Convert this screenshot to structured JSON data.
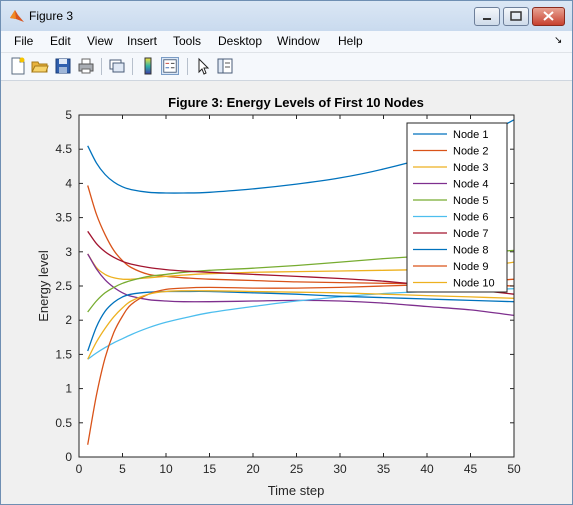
{
  "window": {
    "title": "Figure 3"
  },
  "menu": [
    "File",
    "Edit",
    "View",
    "Insert",
    "Tools",
    "Desktop",
    "Window",
    "Help"
  ],
  "icons": [
    "new-figure-icon",
    "open-file-icon",
    "save-icon",
    "print-icon",
    "link-plot-icon",
    "colorbar-icon",
    "legend-icon",
    "pointer-icon",
    "plot-browser-icon"
  ],
  "chart_data": {
    "type": "line",
    "title": "Figure 3: Energy Levels of First 10 Nodes",
    "xlabel": "Time step",
    "ylabel": "Energy level",
    "xlim": [
      0,
      50
    ],
    "ylim": [
      0,
      5
    ],
    "xticks": [
      "0",
      "5",
      "10",
      "15",
      "20",
      "25",
      "30",
      "35",
      "40",
      "45",
      "50"
    ],
    "yticks": [
      "0",
      "0.5",
      "1",
      "1.5",
      "2",
      "2.5",
      "3",
      "3.5",
      "4",
      "4.5",
      "5"
    ],
    "grid": false,
    "legend_position": "top-right",
    "x": [
      1,
      2,
      3,
      4,
      5,
      6,
      8,
      10,
      12,
      15,
      20,
      25,
      30,
      35,
      40,
      45,
      50
    ],
    "series": [
      {
        "name": "Node 1",
        "color": "#0072BD",
        "values": [
          4.55,
          4.3,
          4.13,
          4.02,
          3.95,
          3.91,
          3.87,
          3.86,
          3.86,
          3.87,
          3.92,
          3.99,
          4.08,
          4.21,
          4.38,
          4.6,
          4.93
        ]
      },
      {
        "name": "Node 2",
        "color": "#D95319",
        "values": [
          3.97,
          3.55,
          3.25,
          3.02,
          2.87,
          2.77,
          2.67,
          2.64,
          2.62,
          2.6,
          2.58,
          2.56,
          2.55,
          2.54,
          2.53,
          2.52,
          2.5
        ]
      },
      {
        "name": "Node 3",
        "color": "#EDB120",
        "values": [
          2.97,
          2.77,
          2.67,
          2.62,
          2.6,
          2.6,
          2.62,
          2.64,
          2.66,
          2.68,
          2.7,
          2.71,
          2.72,
          2.73,
          2.74,
          2.76,
          2.85
        ]
      },
      {
        "name": "Node 4",
        "color": "#7E2F8E",
        "values": [
          2.97,
          2.75,
          2.59,
          2.48,
          2.4,
          2.35,
          2.3,
          2.28,
          2.27,
          2.27,
          2.28,
          2.29,
          2.28,
          2.25,
          2.2,
          2.15,
          2.07
        ]
      },
      {
        "name": "Node 5",
        "color": "#77AC30",
        "values": [
          2.12,
          2.28,
          2.4,
          2.48,
          2.54,
          2.58,
          2.64,
          2.67,
          2.7,
          2.73,
          2.76,
          2.8,
          2.85,
          2.9,
          2.94,
          2.98,
          3.02
        ]
      },
      {
        "name": "Node 6",
        "color": "#4DBEEE",
        "values": [
          1.43,
          1.52,
          1.6,
          1.67,
          1.73,
          1.79,
          1.89,
          1.97,
          2.03,
          2.11,
          2.2,
          2.28,
          2.34,
          2.39,
          2.42,
          2.44,
          2.46
        ]
      },
      {
        "name": "Node 7",
        "color": "#A2142F",
        "values": [
          3.3,
          3.12,
          3.0,
          2.92,
          2.86,
          2.82,
          2.77,
          2.74,
          2.72,
          2.7,
          2.67,
          2.64,
          2.61,
          2.57,
          2.51,
          2.45,
          2.38
        ]
      },
      {
        "name": "Node 8",
        "color": "#0072BD",
        "values": [
          1.55,
          1.9,
          2.13,
          2.26,
          2.34,
          2.38,
          2.41,
          2.42,
          2.42,
          2.42,
          2.4,
          2.38,
          2.35,
          2.33,
          2.31,
          2.29,
          2.27
        ]
      },
      {
        "name": "Node 9",
        "color": "#D95319",
        "values": [
          0.18,
          0.9,
          1.45,
          1.82,
          2.06,
          2.23,
          2.38,
          2.45,
          2.47,
          2.48,
          2.47,
          2.47,
          2.48,
          2.5,
          2.52,
          2.55,
          2.6
        ]
      },
      {
        "name": "Node 10",
        "color": "#EDB120",
        "values": [
          1.43,
          1.68,
          1.88,
          2.05,
          2.18,
          2.28,
          2.38,
          2.42,
          2.43,
          2.43,
          2.42,
          2.41,
          2.4,
          2.38,
          2.36,
          2.34,
          2.32
        ]
      }
    ]
  }
}
